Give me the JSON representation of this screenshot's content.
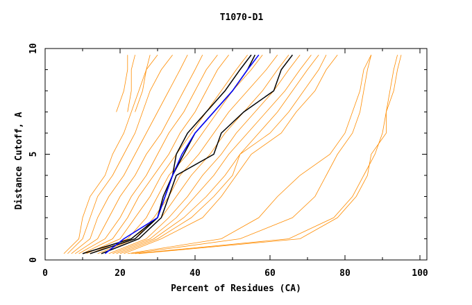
{
  "chart_data": {
    "type": "line",
    "title": "T1070-D1",
    "xlabel": "Percent of Residues (CA)",
    "ylabel": "Distance Cutoff, A",
    "xlim": [
      0,
      100
    ],
    "ylim": [
      0,
      10
    ],
    "xticks": [
      "0",
      "20",
      "40",
      "60",
      "80",
      "100"
    ],
    "yticks": [
      "0",
      "5",
      "10"
    ],
    "grid": false,
    "cutoffs": [
      0.3,
      1,
      2,
      3,
      4,
      5,
      6,
      7,
      8,
      9,
      9.7
    ],
    "colors": {
      "other_models": "#ff8c00",
      "highlight": "#0000ff",
      "reference": "#000000"
    },
    "orange_series": [
      [
        5,
        9,
        10,
        12,
        16,
        18,
        21,
        23,
        25,
        27,
        30
      ],
      [
        6,
        10,
        12,
        14,
        18,
        21,
        24,
        26,
        28,
        31,
        34
      ],
      [
        7,
        12,
        14,
        17,
        21,
        24,
        27,
        30,
        33,
        36,
        38
      ],
      [
        8,
        14,
        17,
        20,
        24,
        27,
        31,
        34,
        37,
        40,
        42
      ],
      [
        9,
        16,
        20,
        23,
        27,
        30,
        33,
        37,
        40,
        43,
        46
      ],
      [
        10,
        18,
        22,
        25,
        29,
        33,
        36,
        40,
        43,
        46,
        49
      ],
      [
        11,
        20,
        24,
        28,
        31,
        35,
        39,
        43,
        47,
        51,
        54
      ],
      [
        12,
        22,
        27,
        30,
        33,
        38,
        42,
        46,
        50,
        55,
        58
      ],
      [
        14,
        24,
        29,
        33,
        36,
        41,
        45,
        49,
        54,
        59,
        62
      ],
      [
        15,
        25,
        31,
        35,
        39,
        44,
        48,
        53,
        58,
        62,
        65
      ],
      [
        17,
        27,
        33,
        38,
        42,
        47,
        51,
        56,
        61,
        65,
        68
      ],
      [
        18,
        28,
        35,
        40,
        45,
        49,
        54,
        59,
        64,
        68,
        71
      ],
      [
        19,
        29,
        37,
        43,
        48,
        52,
        57,
        62,
        66,
        70,
        73
      ],
      [
        20,
        30,
        39,
        45,
        50,
        52,
        60,
        65,
        69,
        73,
        75
      ],
      [
        21,
        31,
        42,
        47,
        51,
        55,
        63,
        67,
        72,
        75,
        78
      ],
      [
        null,
        null,
        null,
        null,
        null,
        null,
        null,
        19,
        21,
        22,
        22
      ],
      [
        null,
        null,
        null,
        null,
        null,
        null,
        null,
        22,
        23,
        23,
        24
      ],
      [
        null,
        null,
        null,
        null,
        null,
        null,
        null,
        24,
        26,
        27,
        28
      ],
      [
        22,
        47,
        57,
        62,
        68,
        76,
        80,
        82,
        84,
        85,
        87
      ],
      [
        23,
        52,
        66,
        72,
        75,
        78,
        82,
        84,
        85,
        86,
        87
      ],
      [
        24,
        65,
        77,
        82,
        85,
        88,
        90,
        91,
        92,
        93,
        94
      ],
      [
        25,
        68,
        78,
        83,
        86,
        87,
        91,
        91,
        93,
        94,
        95
      ]
    ],
    "black_series": [
      [
        10,
        23,
        30,
        31.5,
        34,
        35,
        38,
        43,
        48,
        52,
        55
      ],
      [
        12,
        24,
        30,
        32,
        34,
        37,
        40,
        45,
        50,
        54,
        56
      ],
      [
        15,
        25,
        31,
        33,
        35,
        45,
        47,
        53,
        61,
        63,
        66
      ]
    ],
    "blue_series": [
      [
        16,
        21,
        30,
        32,
        34,
        36.5,
        40,
        45,
        50,
        54,
        57
      ]
    ]
  }
}
